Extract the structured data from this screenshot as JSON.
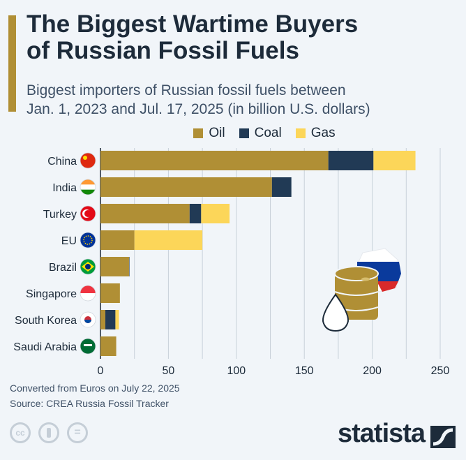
{
  "title_lines": [
    "The Biggest Wartime Buyers",
    "of Russian Fossil Fuels"
  ],
  "subtitle_lines": [
    "Biggest importers of Russian fossil fuels between",
    "Jan. 1, 2023 and Jul. 17, 2025 (in billion U.S. dollars)"
  ],
  "colors": {
    "oil": "#b08f35",
    "coal": "#213a55",
    "gas": "#fcd659",
    "grid": "#c8d0d9"
  },
  "chart_data": {
    "type": "bar",
    "orientation": "horizontal",
    "stacked": true,
    "categories": [
      "China",
      "India",
      "Turkey",
      "EU",
      "Brazil",
      "Singapore",
      "South Korea",
      "Saudi Arabia"
    ],
    "series": [
      {
        "name": "Oil",
        "values": [
          167.7,
          126.2,
          65.6,
          25,
          21.1,
          14.3,
          3.6,
          11.6
        ]
      },
      {
        "name": "Coal",
        "values": [
          33.2,
          14.3,
          8.5,
          0,
          0.3,
          0,
          7.4,
          0
        ]
      },
      {
        "name": "Gas",
        "values": [
          30.9,
          0,
          20.9,
          50,
          0,
          0,
          2.6,
          0
        ]
      }
    ],
    "xlim": [
      0,
      250
    ],
    "xticks": [
      "0",
      "50",
      "100",
      "150",
      "200",
      "250"
    ],
    "xtick_values": [
      0,
      50,
      100,
      150,
      200,
      250
    ],
    "grid_step": 25,
    "legend_position": "top",
    "grid": true
  },
  "footer": {
    "note": "Converted from Euros on July 22, 2025",
    "source": "Source: CREA Russia Fossil Tracker"
  },
  "license_icons": [
    "cc-icon",
    "by-icon",
    "nd-icon"
  ],
  "license_text": {
    "cc": "cc",
    "nd": "="
  },
  "brand": "statista"
}
